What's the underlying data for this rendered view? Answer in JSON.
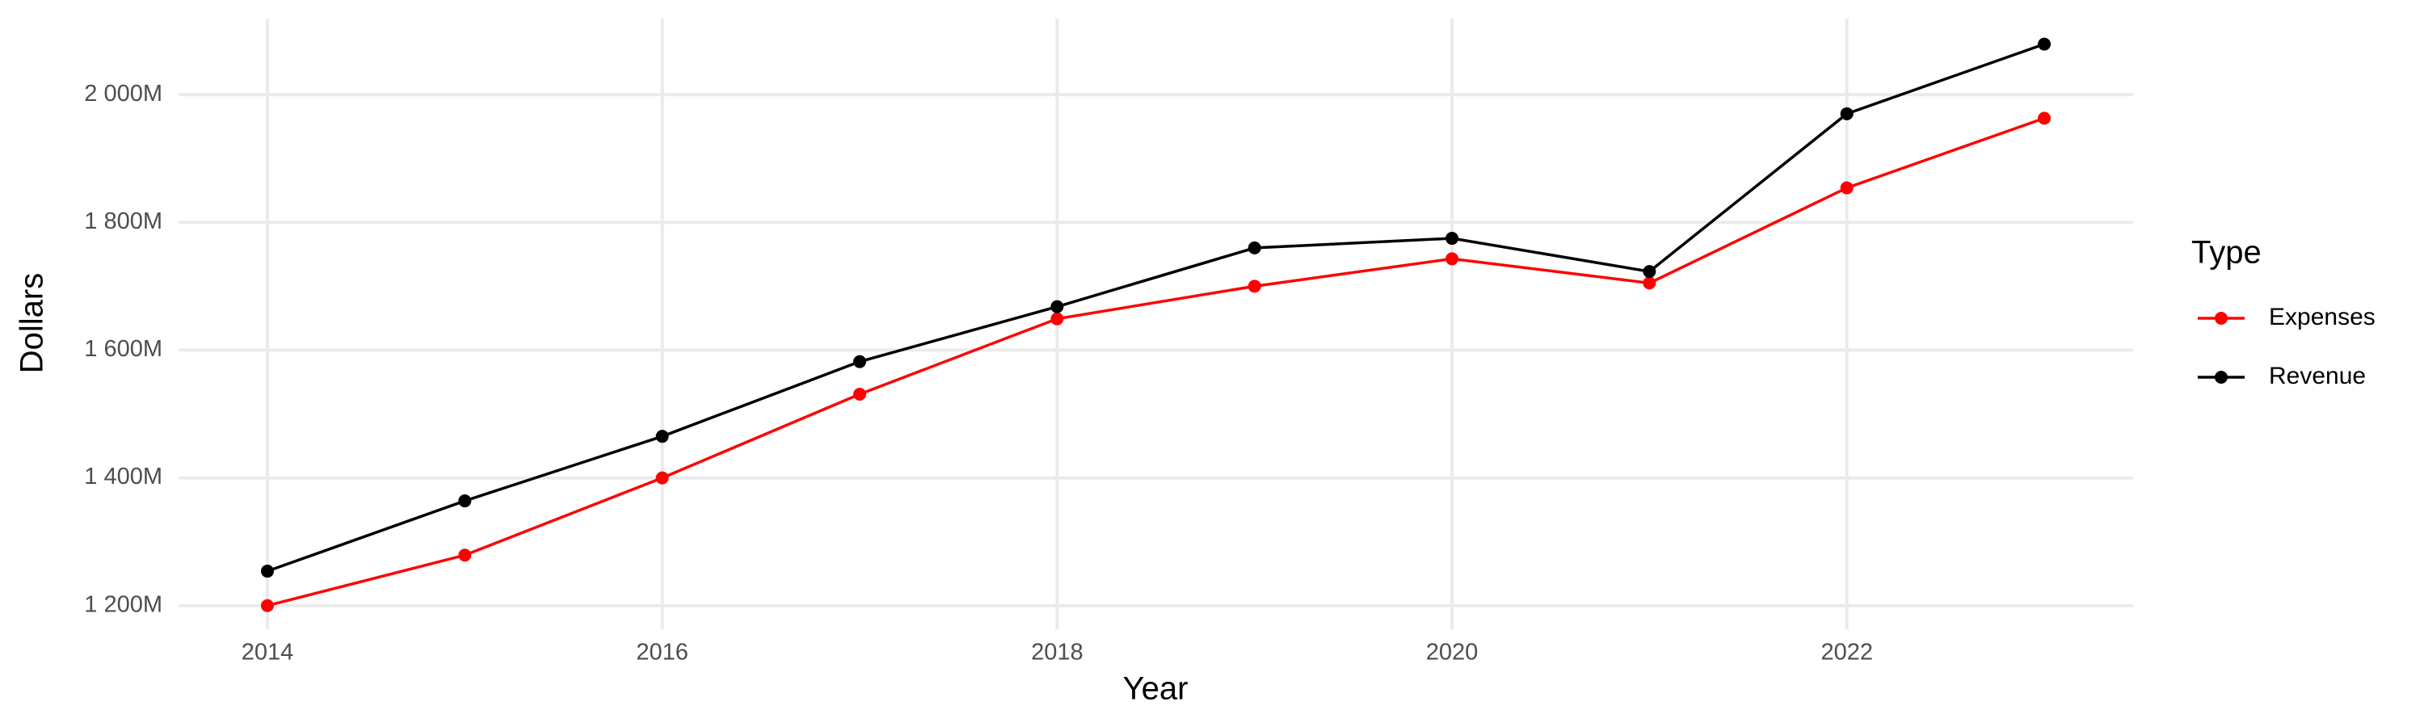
{
  "chart_data": {
    "type": "line",
    "x_label": "Year",
    "y_label": "Dollars",
    "legend_title": "Type",
    "x": [
      2014,
      2015,
      2016,
      2017,
      2018,
      2019,
      2020,
      2021,
      2022,
      2023
    ],
    "series": [
      {
        "name": "Expenses",
        "color": "#ff0000",
        "values": [
          1200000000,
          1279000000,
          1400000000,
          1531000000,
          1649000000,
          1700000000,
          1743000000,
          1705000000,
          1854000000,
          1963000000
        ]
      },
      {
        "name": "Revenue",
        "color": "#000000",
        "values": [
          1254000000,
          1364000000,
          1465000000,
          1582000000,
          1668000000,
          1760000000,
          1775000000,
          1723000000,
          1970000000,
          2079000000
        ]
      }
    ],
    "xlim": [
      2013.55,
      2023.45
    ],
    "xticks": [
      2014,
      2016,
      2018,
      2020,
      2022
    ],
    "ylim": [
      1163000000,
      2119000000
    ],
    "yticks": [
      {
        "value": 1200000000,
        "label": "1 200M"
      },
      {
        "value": 1400000000,
        "label": "1 400M"
      },
      {
        "value": 1600000000,
        "label": "1 600M"
      },
      {
        "value": 1800000000,
        "label": "1 800M"
      },
      {
        "value": 2000000000,
        "label": "2 000M"
      }
    ],
    "grid": true,
    "legend": "right"
  }
}
